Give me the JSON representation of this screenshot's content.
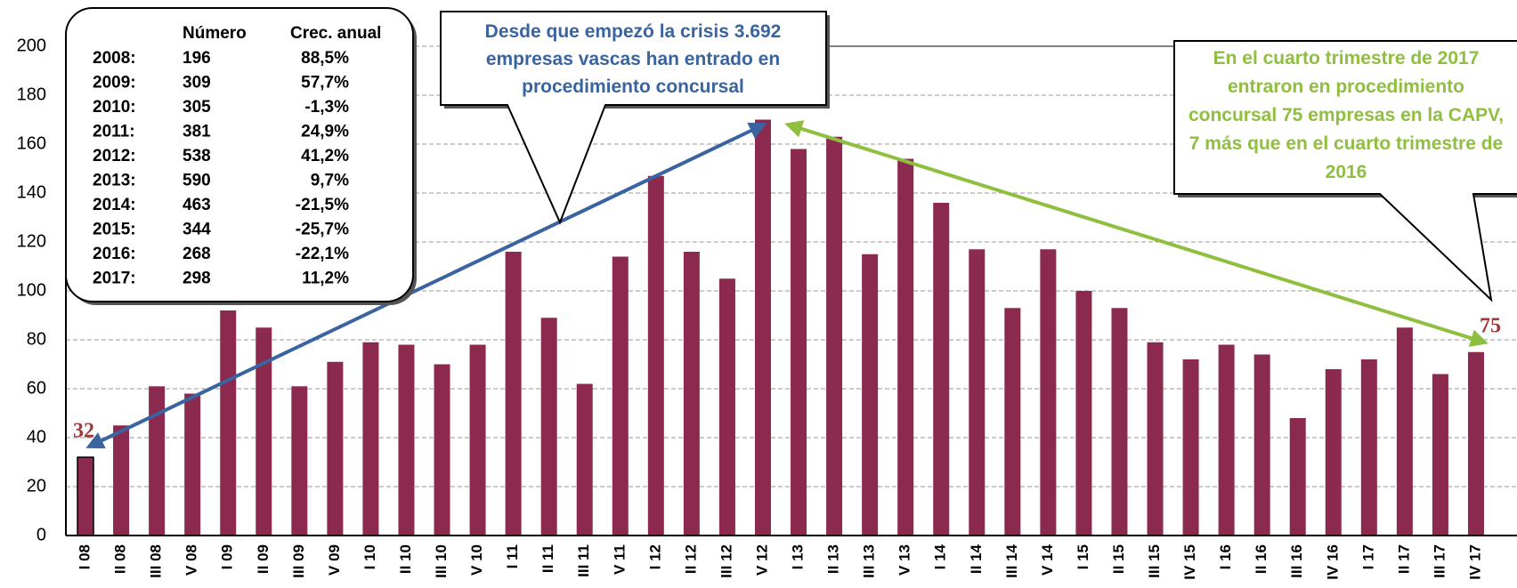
{
  "chart_data": {
    "type": "bar",
    "categories": [
      "I 08",
      "II 08",
      "III 08",
      "V 08",
      "I 09",
      "II 09",
      "III 09",
      "V 09",
      "I 10",
      "II 10",
      "III 10",
      "V 10",
      "I 11",
      "II 11",
      "III 11",
      "V 11",
      "I 12",
      "II 12",
      "III 12",
      "V 12",
      "I 13",
      "II 13",
      "III 13",
      "V 13",
      "I 14",
      "II 14",
      "III 14",
      "V 14",
      "I 15",
      "II 15",
      "III 15",
      "IV 15",
      "I 16",
      "II 16",
      "III 16",
      "IV 16",
      "I 17",
      "II 17",
      "III 17",
      "IV 17"
    ],
    "values": [
      32,
      45,
      61,
      58,
      92,
      85,
      61,
      71,
      79,
      78,
      70,
      78,
      116,
      89,
      62,
      114,
      147,
      116,
      105,
      170,
      158,
      163,
      115,
      154,
      136,
      117,
      93,
      117,
      100,
      93,
      79,
      72,
      78,
      74,
      48,
      68,
      72,
      85,
      66,
      75
    ],
    "value_labels": [
      "32",
      null,
      null,
      null,
      null,
      null,
      null,
      null,
      null,
      null,
      null,
      null,
      null,
      null,
      null,
      null,
      null,
      null,
      null,
      null,
      null,
      null,
      null,
      null,
      null,
      null,
      null,
      null,
      null,
      null,
      null,
      null,
      null,
      null,
      null,
      null,
      null,
      null,
      null,
      "75"
    ],
    "color": "#8b2a4e",
    "ylim": [
      0,
      200
    ],
    "yticks": [
      0,
      20,
      40,
      60,
      80,
      100,
      120,
      140,
      160,
      180,
      200
    ],
    "grid": true,
    "annotations": [
      "Desde que empezó la crisis 3.692 empresas vascas han entrado en procedimiento concursal",
      "En el cuarto trimestre de 2017 entraron en procedimiento concursal 75 empresas en la CAPV, 7 más que en el cuarto trimestre de 2016"
    ]
  },
  "table": {
    "columns": [
      "Número",
      "Crec. anual"
    ],
    "rows": [
      [
        "2008:",
        "196",
        "88,5%"
      ],
      [
        "2009:",
        "309",
        "57,7%"
      ],
      [
        "2010:",
        "305",
        "-1,3%"
      ],
      [
        "2011:",
        "381",
        "24,9%"
      ],
      [
        "2012:",
        "538",
        "41,2%"
      ],
      [
        "2013:",
        "590",
        "9,7%"
      ],
      [
        "2014:",
        "463",
        "-21,5%"
      ],
      [
        "2015:",
        "344",
        "-25,7%"
      ],
      [
        "2016:",
        "268",
        "-22,1%"
      ],
      [
        "2017:",
        "298",
        "11,2%"
      ]
    ]
  }
}
